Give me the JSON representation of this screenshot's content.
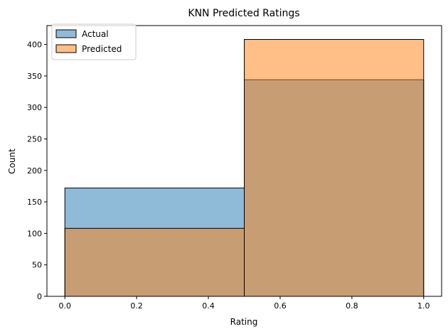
{
  "chart_data": {
    "type": "histogram",
    "title": "KNN Predicted Ratings",
    "xlabel": "Rating",
    "ylabel": "Count",
    "xlim": [
      -0.05,
      1.05
    ],
    "ylim": [
      0,
      430
    ],
    "x_ticks": [
      0.0,
      0.2,
      0.4,
      0.6,
      0.8,
      1.0
    ],
    "x_tick_labels": [
      "0.0",
      "0.2",
      "0.4",
      "0.6",
      "0.8",
      "1.0"
    ],
    "y_ticks": [
      0,
      50,
      100,
      150,
      200,
      250,
      300,
      350,
      400
    ],
    "y_tick_labels": [
      "0",
      "50",
      "100",
      "150",
      "200",
      "250",
      "300",
      "350",
      "400"
    ],
    "bins": [
      [
        0.0,
        0.5
      ],
      [
        0.5,
        1.0
      ]
    ],
    "series": [
      {
        "name": "Actual",
        "color": "#1f77b4",
        "alpha": 0.5,
        "values": [
          172,
          344
        ]
      },
      {
        "name": "Predicted",
        "color": "#ff7f0e",
        "alpha": 0.5,
        "values": [
          108,
          408
        ]
      }
    ],
    "legend": {
      "position": "top-left",
      "labels": [
        "Actual",
        "Predicted"
      ]
    },
    "grid": false
  }
}
